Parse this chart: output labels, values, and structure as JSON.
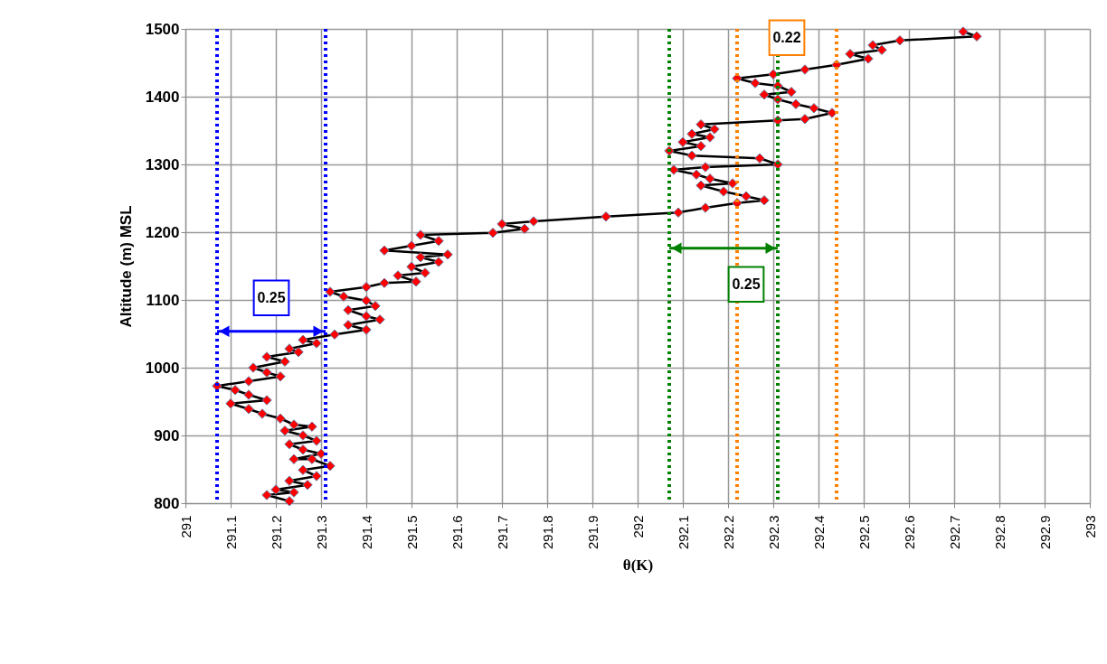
{
  "chart_data": {
    "type": "line",
    "xlabel": "θ(K)",
    "ylabel": "Altitude (m) MSL",
    "xlim": [
      291,
      293
    ],
    "xticks": [
      291,
      291.1,
      291.2,
      291.3,
      291.4,
      291.5,
      291.6,
      291.7,
      291.8,
      291.9,
      292,
      292.1,
      292.2,
      292.3,
      292.4,
      292.5,
      292.6,
      292.7,
      292.8,
      292.9,
      293
    ],
    "ylim": [
      800,
      1500
    ],
    "yticks": [
      800,
      900,
      1000,
      1100,
      1200,
      1300,
      1400,
      1500
    ],
    "grid": true,
    "marker": "diamond",
    "line_style": "solid",
    "series": [
      {
        "color": "#ff0000",
        "x": [
          291.23,
          291.18,
          291.24,
          291.2,
          291.27,
          291.23,
          291.29,
          291.26,
          291.32,
          291.28,
          291.24,
          291.3,
          291.26,
          291.23,
          291.29,
          291.26,
          291.22,
          291.28,
          291.24,
          291.21,
          291.17,
          291.14,
          291.1,
          291.18,
          291.14,
          291.11,
          291.07,
          291.14,
          291.21,
          291.18,
          291.15,
          291.22,
          291.18,
          291.25,
          291.23,
          291.29,
          291.26,
          291.33,
          291.4,
          291.36,
          291.43,
          291.4,
          291.36,
          291.42,
          291.4,
          291.35,
          291.32,
          291.4,
          291.44,
          291.51,
          291.47,
          291.53,
          291.5,
          291.56,
          291.52,
          291.58,
          291.44,
          291.5,
          291.56,
          291.52,
          291.68,
          291.75,
          291.7,
          291.77,
          291.93,
          292.09,
          292.15,
          292.22,
          292.28,
          292.24,
          292.19,
          292.14,
          292.21,
          292.16,
          292.13,
          292.08,
          292.15,
          292.31,
          292.27,
          292.12,
          292.07,
          292.14,
          292.1,
          292.16,
          292.12,
          292.17,
          292.14,
          292.31,
          292.37,
          292.43,
          292.39,
          292.35,
          292.31,
          292.28,
          292.34,
          292.31,
          292.26,
          292.22,
          292.3,
          292.37,
          292.44,
          292.51,
          292.47,
          292.54,
          292.52,
          292.58,
          292.75,
          292.72
        ],
        "values": [
          803,
          812,
          816,
          820,
          827,
          833,
          840,
          849,
          855,
          865,
          865,
          873,
          879,
          887,
          892,
          900,
          907,
          913,
          916,
          925,
          932,
          939,
          947,
          952,
          960,
          967,
          973,
          980,
          987,
          993,
          1000,
          1009,
          1016,
          1023,
          1028,
          1036,
          1041,
          1049,
          1056,
          1063,
          1071,
          1076,
          1085,
          1091,
          1099,
          1105,
          1112,
          1119,
          1125,
          1127,
          1136,
          1140,
          1149,
          1156,
          1163,
          1167,
          1173,
          1180,
          1187,
          1196,
          1199,
          1205,
          1212,
          1216,
          1223,
          1229,
          1236,
          1243,
          1247,
          1253,
          1260,
          1269,
          1272,
          1279,
          1285,
          1292,
          1296,
          1300,
          1309,
          1313,
          1320,
          1327,
          1333,
          1340,
          1345,
          1352,
          1359,
          1365,
          1367,
          1376,
          1383,
          1389,
          1396,
          1403,
          1407,
          1416,
          1420,
          1427,
          1433,
          1440,
          1447,
          1456,
          1463,
          1469,
          1476,
          1483,
          1489,
          1496
        ]
      }
    ],
    "ref_lines": [
      {
        "axis": "x",
        "value": 291.07,
        "label": null,
        "color": "#0000ff",
        "line_style": "dotted"
      },
      {
        "axis": "x",
        "value": 291.31,
        "label": null,
        "color": "#0000ff",
        "line_style": "dotted"
      },
      {
        "axis": "x",
        "value": 292.07,
        "label": null,
        "color": "#008000",
        "line_style": "dotted"
      },
      {
        "axis": "x",
        "value": 292.31,
        "label": null,
        "color": "#008000",
        "line_style": "dotted"
      },
      {
        "axis": "x",
        "value": 292.22,
        "label": null,
        "color": "#ff8000",
        "line_style": "dotted"
      },
      {
        "axis": "x",
        "value": 292.44,
        "label": null,
        "color": "#ff8000",
        "line_style": "dotted"
      }
    ],
    "annotations": [
      {
        "text": "0.25",
        "x": 291.19,
        "y": 1103
      },
      {
        "text": "0.25",
        "x": 292.24,
        "y": 1123
      },
      {
        "text": "0.22",
        "x": 292.33,
        "y": 1487
      }
    ]
  }
}
